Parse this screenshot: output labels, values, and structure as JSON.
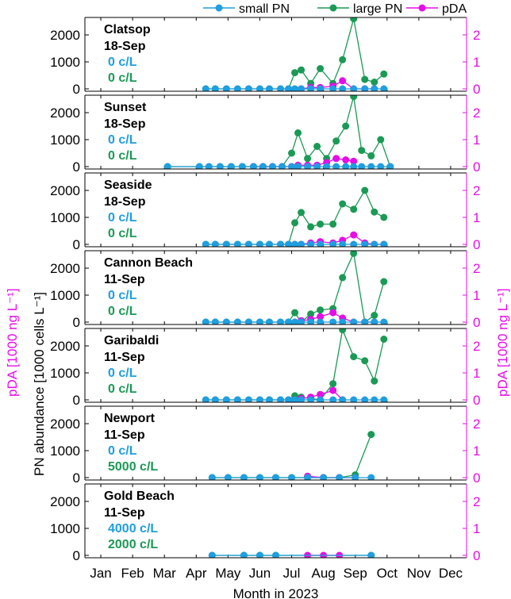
{
  "figure": {
    "xlabel": "Month in 2023",
    "ylabel_left": "PN abundance [1000 cells L⁻¹]",
    "ylabel_pda": "pDA [1000 ng L⁻¹]",
    "months": [
      "Jan",
      "Feb",
      "Mar",
      "Apr",
      "May",
      "Jun",
      "Jul",
      "Aug",
      "Sep",
      "Oct",
      "Nov",
      "Dec"
    ],
    "colors": {
      "small_pn": "#1f9ee0",
      "large_pn": "#1a9a55",
      "pda": "#e60de6",
      "axis": "#000000"
    }
  },
  "legend": {
    "small": "small PN",
    "large": "large PN",
    "pda": "pDA"
  },
  "chart_data": [
    {
      "type": "line",
      "station": "Clatsop",
      "date": "18-Sep",
      "small_label": "0 c/L",
      "large_label": "0 c/L",
      "ylim": [
        0,
        2500
      ],
      "yticks": [
        0,
        1000,
        2000
      ],
      "ylim_right": [
        0,
        2.5
      ],
      "yticks_right": [
        0,
        1,
        2
      ],
      "series": [
        {
          "name": "large PN",
          "x": [
            4.3,
            4.6,
            4.95,
            5.3,
            5.65,
            6.0,
            6.3,
            6.65,
            6.9,
            7.1,
            7.3,
            7.6,
            7.9,
            8.3,
            8.6,
            8.95,
            9.3,
            9.6,
            9.9
          ],
          "values": [
            0,
            0,
            0,
            0,
            0,
            0,
            0,
            0,
            0,
            600,
            700,
            200,
            750,
            200,
            1080,
            2600,
            350,
            250,
            550
          ]
        },
        {
          "name": "small PN",
          "x": [
            4.3,
            4.6,
            4.95,
            5.3,
            5.65,
            6.0,
            6.3,
            6.65,
            6.9,
            7.1,
            7.3,
            7.6,
            7.9,
            8.3,
            8.6,
            8.95,
            9.3,
            9.6,
            9.9
          ],
          "values": [
            0,
            0,
            0,
            0,
            0,
            0,
            0,
            0,
            0,
            0,
            0,
            0,
            0,
            0,
            0,
            0,
            0,
            0,
            0
          ]
        },
        {
          "name": "pDA",
          "x": [
            7.1,
            7.3,
            7.6,
            7.9,
            8.3,
            8.6,
            8.95,
            9.3,
            9.6
          ],
          "values": [
            0,
            0,
            0.05,
            0.05,
            0.1,
            0.3,
            0,
            0,
            0
          ]
        }
      ]
    },
    {
      "type": "line",
      "station": "Sunset",
      "date": "18-Sep",
      "small_label": "0 c/L",
      "large_label": "0 c/L",
      "ylim": [
        0,
        2500
      ],
      "yticks": [
        0,
        1000,
        2000
      ],
      "ylim_right": [
        0,
        2.5
      ],
      "yticks_right": [
        0,
        1,
        2
      ],
      "series": [
        {
          "name": "large PN",
          "x": [
            3.1,
            4.1,
            4.4,
            4.75,
            5.1,
            5.45,
            5.8,
            6.1,
            6.4,
            6.7,
            7.0,
            7.2,
            7.5,
            7.8,
            8.1,
            8.4,
            8.7,
            8.95,
            9.2,
            9.5,
            9.8,
            10.1
          ],
          "values": [
            0,
            0,
            0,
            0,
            0,
            0,
            0,
            0,
            0,
            0,
            500,
            1250,
            300,
            750,
            300,
            950,
            1500,
            2600,
            600,
            400,
            1000,
            0
          ]
        },
        {
          "name": "small PN",
          "x": [
            3.1,
            4.1,
            4.4,
            4.75,
            5.1,
            5.45,
            5.8,
            6.1,
            6.4,
            6.7,
            7.0,
            7.2,
            7.5,
            7.8,
            8.1,
            8.4,
            8.7,
            8.95,
            9.2,
            9.5,
            9.8,
            10.1
          ],
          "values": [
            0,
            0,
            0,
            0,
            0,
            0,
            0,
            0,
            0,
            0,
            0,
            0,
            0,
            0,
            0,
            0,
            0,
            0,
            0,
            0,
            0,
            0
          ]
        },
        {
          "name": "pDA",
          "x": [
            5.8,
            6.1,
            6.4,
            6.7,
            7.0,
            7.2,
            7.5,
            7.8,
            8.1,
            8.4,
            8.7,
            8.95
          ],
          "values": [
            0,
            0,
            0,
            0,
            0,
            0.05,
            0.05,
            0.05,
            0.15,
            0.3,
            0.25,
            0.2
          ]
        }
      ]
    },
    {
      "type": "line",
      "station": "Seaside",
      "date": "18-Sep",
      "small_label": "0 c/L",
      "large_label": "0 c/L",
      "ylim": [
        0,
        2500
      ],
      "yticks": [
        0,
        1000,
        2000
      ],
      "ylim_right": [
        0,
        2.5
      ],
      "yticks_right": [
        0,
        1,
        2
      ],
      "series": [
        {
          "name": "large PN",
          "x": [
            4.3,
            4.6,
            4.95,
            5.3,
            5.65,
            6.0,
            6.3,
            6.65,
            6.9,
            7.1,
            7.3,
            7.6,
            7.9,
            8.3,
            8.6,
            8.95,
            9.3,
            9.6,
            9.9
          ],
          "values": [
            0,
            0,
            0,
            0,
            0,
            0,
            0,
            0,
            0,
            800,
            1180,
            650,
            750,
            750,
            1500,
            1300,
            2000,
            1200,
            1000
          ]
        },
        {
          "name": "small PN",
          "x": [
            4.3,
            4.6,
            4.95,
            5.3,
            5.65,
            6.0,
            6.3,
            6.65,
            6.9,
            7.1,
            7.3,
            7.6,
            7.9,
            8.3,
            8.6,
            8.95,
            9.3,
            9.6,
            9.9
          ],
          "values": [
            0,
            0,
            0,
            0,
            0,
            0,
            0,
            0,
            0,
            0,
            0,
            0,
            0,
            0,
            0,
            0,
            0,
            0,
            0
          ]
        },
        {
          "name": "pDA",
          "x": [
            7.1,
            7.3,
            7.6,
            7.9,
            8.3,
            8.6,
            8.95,
            9.3,
            9.6,
            9.9
          ],
          "values": [
            0,
            0,
            0.05,
            0.1,
            0.05,
            0.15,
            0.35,
            0.05,
            0,
            0
          ]
        }
      ]
    },
    {
      "type": "line",
      "station": "Cannon Beach",
      "date": "11-Sep",
      "small_label": "0 c/L",
      "large_label": "0 c/L",
      "ylim": [
        0,
        2500
      ],
      "yticks": [
        0,
        1000,
        2000
      ],
      "ylim_right": [
        0,
        2.5
      ],
      "yticks_right": [
        0,
        1,
        2
      ],
      "series": [
        {
          "name": "large PN",
          "x": [
            4.3,
            4.6,
            4.95,
            5.3,
            5.65,
            6.0,
            6.3,
            6.65,
            6.9,
            7.1,
            7.3,
            7.6,
            7.9,
            8.3,
            8.6,
            8.95,
            9.3,
            9.6,
            9.9
          ],
          "values": [
            0,
            0,
            0,
            0,
            0,
            0,
            0,
            0,
            0,
            350,
            0,
            300,
            450,
            500,
            1650,
            2550,
            0,
            250,
            1500
          ]
        },
        {
          "name": "small PN",
          "x": [
            4.3,
            4.6,
            4.95,
            5.3,
            5.65,
            6.0,
            6.3,
            6.65,
            6.9,
            7.1,
            7.3,
            7.6,
            7.9,
            8.3,
            8.6,
            8.95,
            9.3,
            9.6,
            9.9
          ],
          "values": [
            0,
            0,
            0,
            0,
            0,
            0,
            0,
            0,
            0,
            0,
            0,
            0,
            0,
            0,
            0,
            0,
            0,
            0,
            0
          ]
        },
        {
          "name": "pDA",
          "x": [
            7.1,
            7.3,
            7.6,
            7.9,
            8.3,
            8.6,
            8.95,
            9.3,
            9.6
          ],
          "values": [
            0,
            0.05,
            0.1,
            0.2,
            0.35,
            0.15,
            0,
            0,
            0
          ]
        }
      ]
    },
    {
      "type": "line",
      "station": "Garibaldi",
      "date": "11-Sep",
      "small_label": "0 c/L",
      "large_label": "0 c/L",
      "ylim": [
        0,
        2500
      ],
      "yticks": [
        0,
        1000,
        2000
      ],
      "ylim_right": [
        0,
        2.5
      ],
      "yticks_right": [
        0,
        1,
        2
      ],
      "series": [
        {
          "name": "large PN",
          "x": [
            4.3,
            4.6,
            4.95,
            5.3,
            5.65,
            6.0,
            6.3,
            6.65,
            6.9,
            7.1,
            7.3,
            7.6,
            7.9,
            8.3,
            8.6,
            8.95,
            9.3,
            9.6,
            9.9
          ],
          "values": [
            0,
            0,
            0,
            0,
            0,
            0,
            0,
            0,
            0,
            150,
            100,
            50,
            0,
            600,
            2600,
            1600,
            1450,
            700,
            2250
          ]
        },
        {
          "name": "small PN",
          "x": [
            4.3,
            4.6,
            4.95,
            5.3,
            5.65,
            6.0,
            6.3,
            6.65,
            6.9,
            7.1,
            7.3,
            7.6,
            7.9,
            8.3,
            8.6,
            8.95,
            9.3,
            9.6,
            9.9
          ],
          "values": [
            0,
            0,
            0,
            0,
            0,
            0,
            0,
            0,
            0,
            0,
            0,
            0,
            0,
            0,
            0,
            0,
            0,
            0,
            0
          ]
        },
        {
          "name": "pDA",
          "x": [
            7.1,
            7.3,
            7.6,
            7.9,
            8.3,
            8.6
          ],
          "values": [
            0,
            0.05,
            0.1,
            0.2,
            0.35,
            0
          ]
        }
      ]
    },
    {
      "type": "line",
      "station": "Newport",
      "date": "11-Sep",
      "small_label": "0 c/L",
      "large_label": "5000 c/L",
      "ylim": [
        0,
        2500
      ],
      "yticks": [
        0,
        1000,
        2000
      ],
      "ylim_right": [
        0,
        2.5
      ],
      "yticks_right": [
        0,
        1,
        2
      ],
      "series": [
        {
          "name": "large PN",
          "x": [
            4.5,
            5.0,
            5.5,
            6.0,
            6.5,
            7.0,
            7.5,
            8.0,
            8.5,
            9.0,
            9.5
          ],
          "values": [
            0,
            0,
            0,
            0,
            0,
            0,
            0,
            0,
            0,
            100,
            1600
          ]
        },
        {
          "name": "small PN",
          "x": [
            4.5,
            5.0,
            5.5,
            6.0,
            6.5,
            7.0,
            7.5,
            8.0,
            8.5,
            9.0,
            9.5
          ],
          "values": [
            0,
            0,
            0,
            0,
            0,
            0,
            0,
            0,
            0,
            0,
            0
          ]
        },
        {
          "name": "pDA",
          "x": [
            7.5,
            8.0,
            8.5,
            9.0
          ],
          "values": [
            0.05,
            0,
            0,
            0
          ]
        }
      ]
    },
    {
      "type": "line",
      "station": "Gold Beach",
      "date": "11-Sep",
      "small_label": "4000 c/L",
      "large_label": "2000 c/L",
      "ylim": [
        0,
        2500
      ],
      "yticks": [
        0,
        1000,
        2000
      ],
      "ylim_right": [
        0,
        2.5
      ],
      "yticks_right": [
        0,
        1,
        2
      ],
      "series": [
        {
          "name": "large PN",
          "x": [
            4.5,
            5.5,
            6.0,
            6.5,
            9.5
          ],
          "values": [
            0,
            0,
            0,
            0,
            0
          ]
        },
        {
          "name": "small PN",
          "x": [
            4.5,
            5.5,
            6.0,
            6.5,
            9.5
          ],
          "values": [
            0,
            0,
            0,
            0,
            0
          ]
        },
        {
          "name": "pDA",
          "x": [
            7.5,
            8.0,
            8.5
          ],
          "values": [
            0,
            0,
            0
          ]
        }
      ]
    }
  ]
}
